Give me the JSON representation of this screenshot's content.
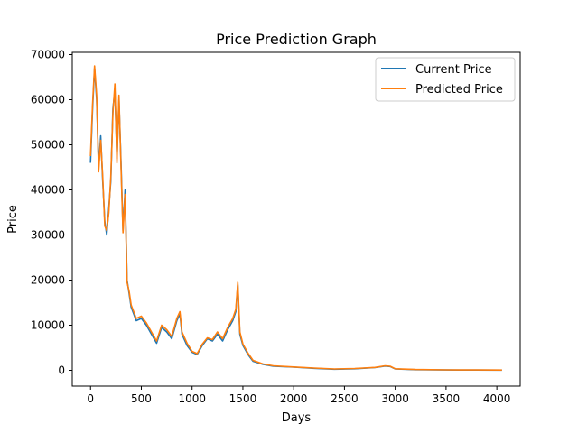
{
  "chart_data": {
    "type": "line",
    "title": "Price Prediction Graph",
    "xlabel": "Days",
    "ylabel": "Price",
    "xlim": [
      -180,
      4230
    ],
    "ylim": [
      -3500,
      70500
    ],
    "xticks": [
      0,
      500,
      1000,
      1500,
      2000,
      2500,
      3000,
      3500,
      4000
    ],
    "yticks": [
      0,
      10000,
      20000,
      30000,
      40000,
      50000,
      60000,
      70000
    ],
    "grid": false,
    "legend_position": "top-right",
    "series": [
      {
        "name": "Current Price",
        "color": "#1f77b4",
        "x": [
          0,
          20,
          40,
          60,
          80,
          100,
          120,
          140,
          160,
          180,
          200,
          220,
          240,
          260,
          280,
          300,
          320,
          340,
          360,
          380,
          400,
          450,
          500,
          550,
          600,
          650,
          700,
          750,
          800,
          850,
          880,
          900,
          950,
          1000,
          1050,
          1100,
          1150,
          1200,
          1250,
          1300,
          1350,
          1400,
          1430,
          1450,
          1470,
          1500,
          1550,
          1600,
          1700,
          1800,
          2000,
          2200,
          2400,
          2600,
          2800,
          2900,
          2950,
          3000,
          3200,
          3500,
          3800,
          4050
        ],
        "y": [
          46000,
          58000,
          67000,
          60000,
          45000,
          52000,
          42000,
          33000,
          30000,
          36000,
          42000,
          58000,
          62000,
          47000,
          60000,
          46000,
          31000,
          40000,
          20000,
          17000,
          14000,
          11000,
          11500,
          10000,
          8000,
          6000,
          9500,
          8500,
          7000,
          11000,
          12500,
          8000,
          5500,
          4000,
          3500,
          5500,
          7000,
          6500,
          8000,
          6500,
          9000,
          11000,
          13000,
          19000,
          8000,
          5500,
          3500,
          2000,
          1300,
          900,
          700,
          450,
          250,
          350,
          600,
          950,
          850,
          300,
          150,
          80,
          60,
          50
        ]
      },
      {
        "name": "Predicted Price",
        "color": "#ff7f0e",
        "x": [
          0,
          20,
          40,
          60,
          80,
          100,
          120,
          140,
          160,
          180,
          200,
          220,
          240,
          260,
          280,
          300,
          320,
          340,
          360,
          380,
          400,
          450,
          500,
          550,
          600,
          650,
          700,
          750,
          800,
          850,
          880,
          900,
          950,
          1000,
          1050,
          1100,
          1150,
          1200,
          1250,
          1300,
          1350,
          1400,
          1430,
          1450,
          1470,
          1500,
          1550,
          1600,
          1700,
          1800,
          2000,
          2200,
          2400,
          2600,
          2800,
          2900,
          2950,
          3000,
          3200,
          3500,
          3800,
          4050
        ],
        "y": [
          47500,
          59000,
          67500,
          61000,
          44000,
          51000,
          43000,
          32000,
          31000,
          35000,
          43000,
          57000,
          63500,
          46000,
          61000,
          45000,
          30500,
          39000,
          19500,
          17500,
          14500,
          11500,
          12000,
          10500,
          8500,
          6500,
          10000,
          9000,
          7500,
          11500,
          13000,
          8500,
          6000,
          4200,
          3700,
          5800,
          7200,
          6800,
          8500,
          7000,
          9500,
          11500,
          13500,
          19500,
          8500,
          5800,
          3800,
          2200,
          1400,
          1000,
          750,
          500,
          300,
          400,
          650,
          1000,
          900,
          350,
          180,
          100,
          70,
          60
        ]
      }
    ]
  }
}
